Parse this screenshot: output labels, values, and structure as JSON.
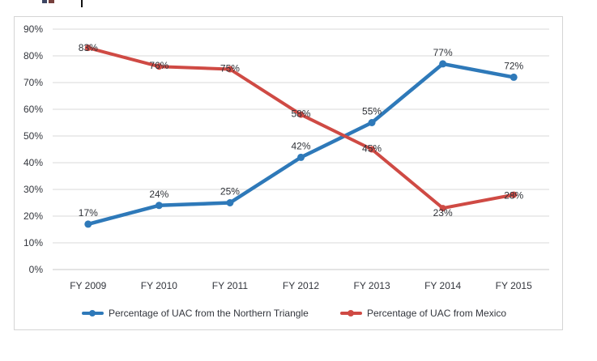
{
  "style": {
    "background": "#ffffff",
    "border_color": "#d5d5d5",
    "grid_color": "#d9d9d9",
    "axis_line_color": "#c8c8c8",
    "text_color": "#33363d"
  },
  "chart_data": {
    "type": "line",
    "title": "",
    "xlabel": "",
    "ylabel": "",
    "categories": [
      "FY 2009",
      "FY 2010",
      "FY 2011",
      "FY 2012",
      "FY 2013",
      "FY 2014",
      "FY 2015"
    ],
    "y_ticks": [
      "0%",
      "10%",
      "20%",
      "30%",
      "40%",
      "50%",
      "60%",
      "70%",
      "80%",
      "90%"
    ],
    "ylim": [
      0,
      90
    ],
    "grid": true,
    "legend_position": "bottom",
    "series": [
      {
        "name": "Percentage of UAC from the Northern Triangle",
        "color": "#2e79b9",
        "values": [
          17,
          24,
          25,
          42,
          55,
          77,
          72
        ],
        "point_labels": [
          "17%",
          "24%",
          "25%",
          "42%",
          "55%",
          "77%",
          "72%"
        ],
        "label_offsets_y": [
          -10,
          -10,
          -10,
          -10,
          -10,
          -10,
          -10
        ]
      },
      {
        "name": "Percentage of UAC from Mexico",
        "color": "#cf4a44",
        "values": [
          83,
          76,
          75,
          58,
          45,
          23,
          28
        ],
        "point_labels": [
          "83%",
          "76%",
          "75%",
          "58%",
          "45%",
          "23%",
          "28%"
        ],
        "label_offsets_y": [
          4,
          3,
          3,
          3,
          3,
          10,
          5
        ]
      }
    ]
  }
}
